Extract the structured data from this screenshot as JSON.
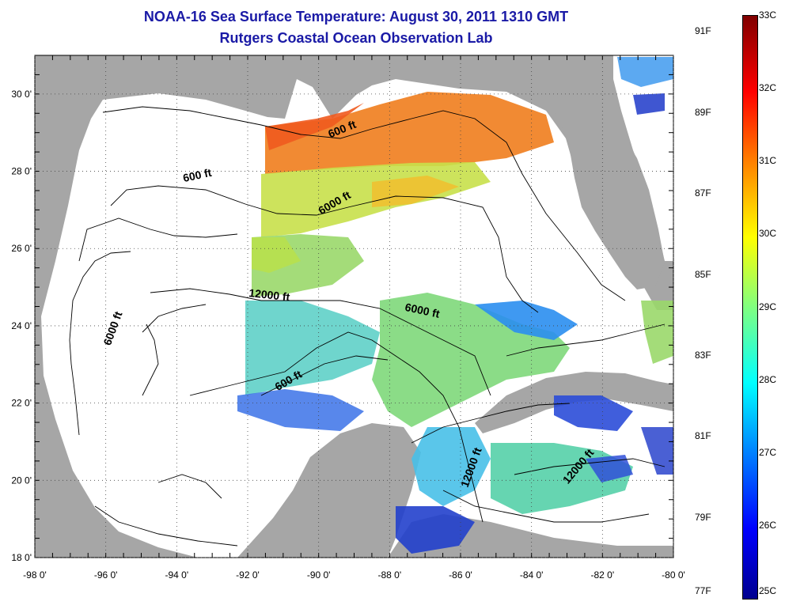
{
  "title_line1": "NOAA-16 Sea Surface Temperature:  August 30, 2011 1310 GMT",
  "title_line2": "Rutgers Coastal Ocean Observation Lab",
  "axes": {
    "lat_ticks": [
      "30 0'",
      "28 0'",
      "26 0'",
      "24 0'",
      "22 0'",
      "20 0'",
      "18 0'"
    ],
    "lon_ticks": [
      "-98 0'",
      "-96 0'",
      "-94 0'",
      "-92 0'",
      "-90 0'",
      "-88 0'",
      "-86 0'",
      "-84 0'",
      "-82 0'",
      "-80 0'"
    ],
    "lat_range": [
      18,
      31
    ],
    "lon_range": [
      -98,
      -80
    ],
    "grid": "dotted"
  },
  "contour_labels": [
    {
      "text": "600 ft",
      "lon": -93.4,
      "lat": 27.8
    },
    {
      "text": "600 ft",
      "lon": -89.3,
      "lat": 29.0
    },
    {
      "text": "6000 ft",
      "lon": -89.5,
      "lat": 27.1
    },
    {
      "text": "12000 ft",
      "lon": -91.4,
      "lat": 24.7
    },
    {
      "text": "6000 ft",
      "lon": -87.1,
      "lat": 24.3
    },
    {
      "text": "6000 ft",
      "lon": -95.7,
      "lat": 23.9
    },
    {
      "text": "600 ft",
      "lon": -90.8,
      "lat": 22.5
    },
    {
      "text": "12000 ft",
      "lon": -85.6,
      "lat": 20.3
    },
    {
      "text": "12000 ft",
      "lon": -82.6,
      "lat": 20.3
    }
  ],
  "colorbar": {
    "celsius": [
      "33C",
      "32C",
      "31C",
      "30C",
      "29C",
      "28C",
      "27C",
      "26C",
      "25C"
    ],
    "fahrenheit": [
      "91F",
      "89F",
      "87F",
      "85F",
      "83F",
      "81F",
      "79F",
      "77F"
    ],
    "range_c": [
      25,
      33
    ],
    "colormap": "jet"
  },
  "colors": {
    "land": "#a6a6a6",
    "nodata": "#ffffff",
    "title": "#1a1aa6"
  }
}
